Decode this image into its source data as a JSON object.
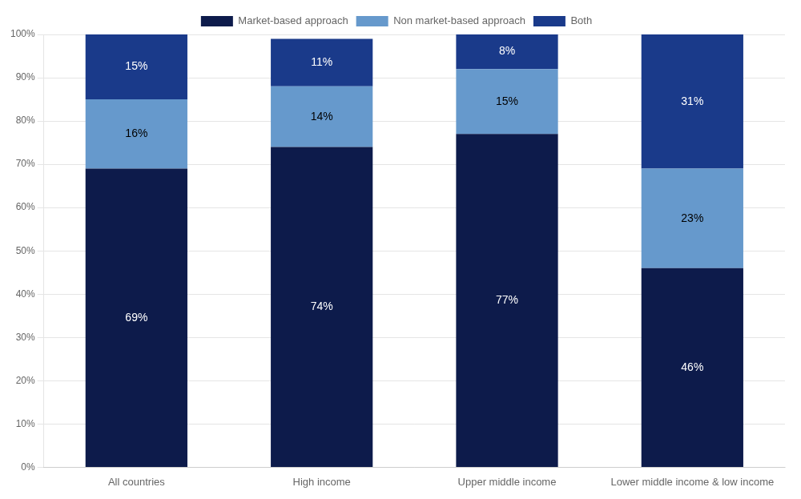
{
  "chart_data": {
    "type": "bar",
    "stacked": true,
    "categories": [
      "All countries",
      "High income",
      "Upper middle income",
      "Lower middle income & low income"
    ],
    "series": [
      {
        "name": "Market-based approach",
        "color": "#0d1b4b",
        "values": [
          69,
          74,
          77,
          46
        ],
        "value_labels": [
          "69%",
          "74%",
          "77%",
          "46%"
        ]
      },
      {
        "name": "Non market-based approach",
        "color": "#6699cc",
        "values": [
          16,
          14,
          15,
          23
        ],
        "value_labels": [
          "16%",
          "14%",
          "15%",
          "23%"
        ]
      },
      {
        "name": "Both",
        "color": "#1a3a8a",
        "values": [
          15,
          11,
          8,
          31
        ],
        "value_labels": [
          "15%",
          "11%",
          "8%",
          "31%"
        ]
      }
    ],
    "ylim": [
      0,
      100
    ],
    "yticks": [
      {
        "value": 0,
        "label": "0%"
      },
      {
        "value": 10,
        "label": "10%"
      },
      {
        "value": 20,
        "label": "20%"
      },
      {
        "value": 30,
        "label": "30%"
      },
      {
        "value": 40,
        "label": "40%"
      },
      {
        "value": 50,
        "label": "50%"
      },
      {
        "value": 60,
        "label": "60%"
      },
      {
        "value": 70,
        "label": "70%"
      },
      {
        "value": 80,
        "label": "80%"
      },
      {
        "value": 90,
        "label": "90%"
      },
      {
        "value": 100,
        "label": "100%"
      }
    ],
    "grid": true,
    "legend": "top",
    "data_labels": true
  }
}
